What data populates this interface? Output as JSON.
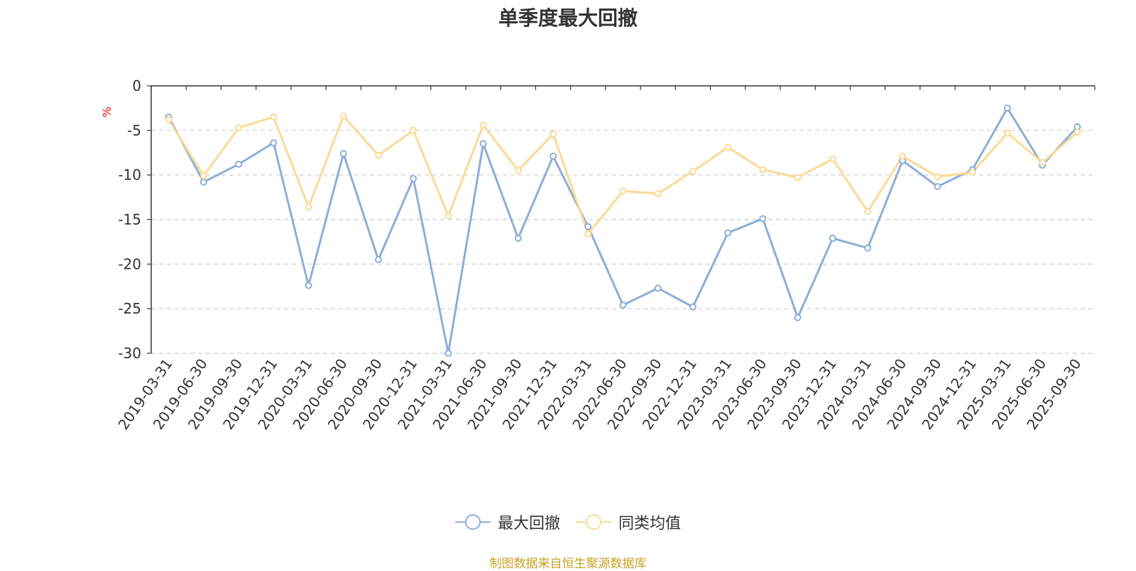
{
  "chart_data": {
    "type": "line",
    "title": "单季度最大回撤",
    "ylabel": "%",
    "ylim": [
      -30,
      0
    ],
    "yticks": [
      0,
      -5,
      -10,
      -15,
      -20,
      -25,
      -30
    ],
    "grid": true,
    "legend_position": "bottom",
    "categories": [
      "2019-03-31",
      "2019-06-30",
      "2019-09-30",
      "2019-12-31",
      "2020-03-31",
      "2020-06-30",
      "2020-09-30",
      "2020-12-31",
      "2021-03-31",
      "2021-06-30",
      "2021-09-30",
      "2021-12-31",
      "2022-03-31",
      "2022-06-30",
      "2022-09-30",
      "2022-12-31",
      "2023-03-31",
      "2023-06-30",
      "2023-09-30",
      "2023-12-31",
      "2024-03-31",
      "2024-06-30",
      "2024-09-30",
      "2024-12-31",
      "2025-03-31",
      "2025-06-30",
      "2025-09-30"
    ],
    "series": [
      {
        "name": "最大回撤",
        "color": "#8daed9",
        "values": [
          -3.5,
          -10.8,
          -8.8,
          -6.4,
          -22.4,
          -7.6,
          -19.5,
          -10.4,
          -30.0,
          -6.5,
          -17.1,
          -7.9,
          -15.8,
          -24.6,
          -22.7,
          -24.8,
          -16.5,
          -14.9,
          -26.0,
          -17.1,
          -18.2,
          -8.4,
          -11.3,
          -9.4,
          -2.5,
          -8.9,
          -4.6
        ]
      },
      {
        "name": "同类均值",
        "color": "#fcd995",
        "values": [
          -3.8,
          -10.1,
          -4.7,
          -3.5,
          -13.6,
          -3.4,
          -7.8,
          -5.0,
          -14.6,
          -4.4,
          -9.5,
          -5.4,
          -16.6,
          -11.8,
          -12.1,
          -9.6,
          -6.9,
          -9.4,
          -10.3,
          -8.2,
          -14.1,
          -7.9,
          -10.2,
          -9.7,
          -5.3,
          -8.6,
          -5.2
        ]
      }
    ]
  },
  "footer": {
    "source": "制图数据来自恒生聚源数据库"
  }
}
